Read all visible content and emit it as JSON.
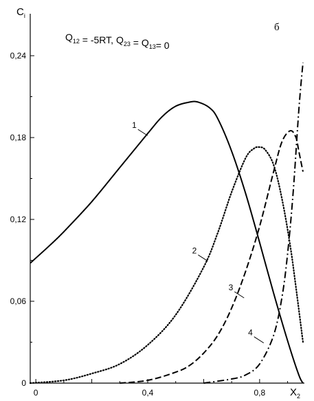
{
  "chart_data": {
    "type": "line",
    "title": "",
    "panel_label": "б",
    "ylabel": {
      "main": "C",
      "sub": "i"
    },
    "xlabel": {
      "main": "X",
      "sub": "2"
    },
    "annotation": {
      "parts": [
        {
          "text": "Q",
          "sub": "12"
        },
        {
          "text": " = -5RT, Q",
          "sub": "23"
        },
        {
          "text": " = Q",
          "sub": "13"
        },
        {
          "text": "= 0",
          "sub": ""
        }
      ]
    },
    "xlim": [
      -0.02,
      0.96
    ],
    "ylim": [
      0,
      0.24
    ],
    "x_ticks": [
      {
        "value": 0,
        "label": "0"
      },
      {
        "value": 0.4,
        "label": "0,4"
      },
      {
        "value": 0.8,
        "label": "0,8"
      }
    ],
    "y_ticks": [
      {
        "value": 0,
        "label": "0"
      },
      {
        "value": 0.06,
        "label": "0,06"
      },
      {
        "value": 0.12,
        "label": "0,12"
      },
      {
        "value": 0.18,
        "label": "0,18"
      },
      {
        "value": 0.24,
        "label": "0,24"
      }
    ],
    "grid": false,
    "series": [
      {
        "name": "1",
        "style": "solid",
        "label_at": [
          0.37,
          0.187
        ],
        "points": [
          [
            -0.02,
            0.088
          ],
          [
            0.05,
            0.101
          ],
          [
            0.1,
            0.111
          ],
          [
            0.2,
            0.133
          ],
          [
            0.3,
            0.158
          ],
          [
            0.4,
            0.183
          ],
          [
            0.45,
            0.195
          ],
          [
            0.5,
            0.203
          ],
          [
            0.55,
            0.206
          ],
          [
            0.58,
            0.206
          ],
          [
            0.62,
            0.202
          ],
          [
            0.65,
            0.194
          ],
          [
            0.7,
            0.17
          ],
          [
            0.75,
            0.139
          ],
          [
            0.8,
            0.103
          ],
          [
            0.85,
            0.066
          ],
          [
            0.9,
            0.031
          ],
          [
            0.94,
            0.006
          ],
          [
            0.955,
            0.0
          ]
        ]
      },
      {
        "name": "2",
        "style": "dotted",
        "label_at": [
          0.585,
          0.095
        ],
        "points": [
          [
            -0.02,
            0.0
          ],
          [
            0.1,
            0.002
          ],
          [
            0.2,
            0.007
          ],
          [
            0.3,
            0.014
          ],
          [
            0.4,
            0.028
          ],
          [
            0.5,
            0.05
          ],
          [
            0.6,
            0.085
          ],
          [
            0.65,
            0.11
          ],
          [
            0.7,
            0.14
          ],
          [
            0.75,
            0.165
          ],
          [
            0.78,
            0.172
          ],
          [
            0.8,
            0.173
          ],
          [
            0.82,
            0.171
          ],
          [
            0.85,
            0.16
          ],
          [
            0.88,
            0.135
          ],
          [
            0.91,
            0.1
          ],
          [
            0.93,
            0.07
          ],
          [
            0.955,
            0.03
          ]
        ]
      },
      {
        "name": "3",
        "style": "dashed",
        "label_at": [
          0.715,
          0.068
        ],
        "points": [
          [
            0.3,
            0.0
          ],
          [
            0.4,
            0.002
          ],
          [
            0.5,
            0.008
          ],
          [
            0.55,
            0.013
          ],
          [
            0.6,
            0.022
          ],
          [
            0.65,
            0.035
          ],
          [
            0.7,
            0.055
          ],
          [
            0.75,
            0.082
          ],
          [
            0.8,
            0.115
          ],
          [
            0.85,
            0.155
          ],
          [
            0.88,
            0.177
          ],
          [
            0.91,
            0.185
          ],
          [
            0.93,
            0.18
          ],
          [
            0.94,
            0.17
          ],
          [
            0.955,
            0.155
          ]
        ]
      },
      {
        "name": "4",
        "style": "dashdot",
        "label_at": [
          0.785,
          0.035
        ],
        "points": [
          [
            0.6,
            0.0
          ],
          [
            0.7,
            0.003
          ],
          [
            0.75,
            0.006
          ],
          [
            0.8,
            0.014
          ],
          [
            0.85,
            0.035
          ],
          [
            0.88,
            0.063
          ],
          [
            0.9,
            0.095
          ],
          [
            0.92,
            0.14
          ],
          [
            0.94,
            0.2
          ],
          [
            0.955,
            0.235
          ]
        ]
      }
    ]
  }
}
